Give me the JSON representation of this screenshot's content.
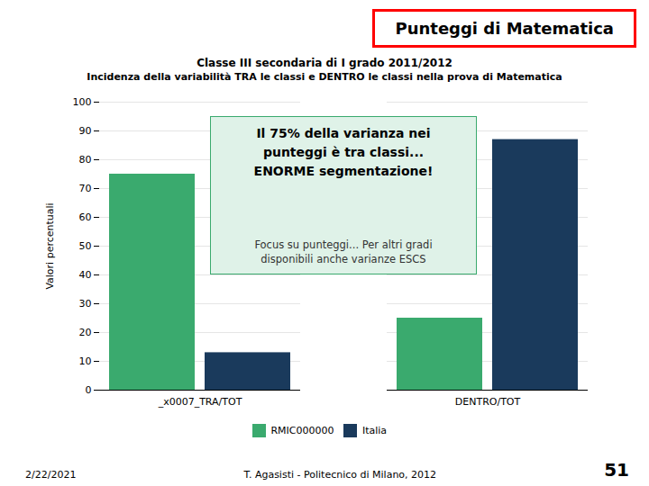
{
  "chart_data": {
    "type": "bar",
    "title": "Punteggi di Matematica",
    "subtitle": [
      "Classe III secondaria di I grado 2011/2012",
      "Incidenza della variabilità TRA le classi e DENTRO le classi nella prova di Matematica"
    ],
    "categories": [
      "_x0007_TRA/TOT",
      "DENTRO/TOT"
    ],
    "series": [
      {
        "name": "RMIC000000",
        "color": "#3aaa6e",
        "values": [
          75,
          25
        ]
      },
      {
        "name": "Italia",
        "color": "#1a3a5c",
        "values": [
          13,
          87
        ]
      }
    ],
    "ylabel": "Valori percentuali",
    "ylim": [
      0,
      100
    ],
    "yticks": [
      0,
      10,
      20,
      30,
      40,
      50,
      60,
      70,
      80,
      90,
      100
    ],
    "grid": true,
    "legend": "bottom",
    "annotations": [
      "Il 75% della varianza nei\npunteggi è tra classi...\nENORME segmentazione!",
      "Focus su punteggi... Per altri gradi\ndisponibili anche varianze ESCS"
    ],
    "footer": [
      "2/22/2021",
      "T. Agasisti - Politecnico di Milano, 2012",
      "51"
    ]
  }
}
